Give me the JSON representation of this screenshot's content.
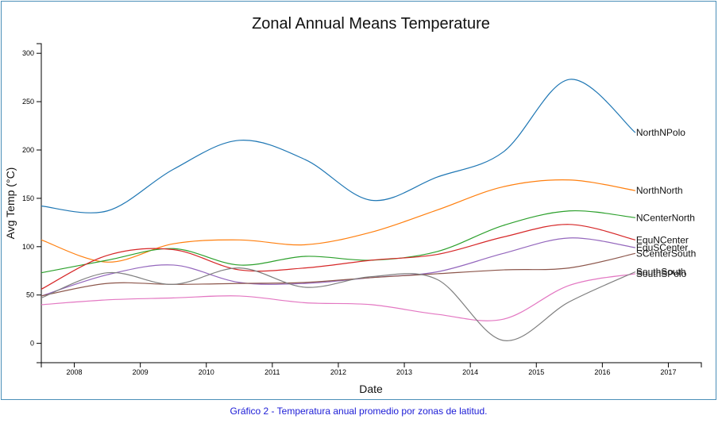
{
  "caption": "Gráfico 2 - Temperatura anual promedio por zonas de latitud.",
  "chart_data": {
    "type": "line",
    "title": "Zonal Annual Means Temperature",
    "xlabel": "Date",
    "ylabel": "Avg Temp (°C)",
    "xlim": [
      2007.5,
      2017.5
    ],
    "ylim": [
      -20,
      310
    ],
    "x_ticks": [
      2008,
      2009,
      2010,
      2011,
      2012,
      2013,
      2014,
      2015,
      2016,
      2017
    ],
    "y_ticks": [
      0,
      50,
      100,
      150,
      200,
      250,
      300
    ],
    "grid": false,
    "x": [
      2007.5,
      2008.5,
      2009.5,
      2010.5,
      2011.5,
      2012.5,
      2013.5,
      2014.5,
      2015.5,
      2016.5
    ],
    "series": [
      {
        "name": "NorthNPolo",
        "color": "#1f77b4",
        "values": [
          142,
          137,
          180,
          210,
          190,
          148,
          172,
          198,
          273,
          218
        ]
      },
      {
        "name": "NorthNorth",
        "color": "#ff7f0e",
        "values": [
          107,
          84,
          103,
          107,
          102,
          115,
          138,
          162,
          169,
          158
        ]
      },
      {
        "name": "NCenterNorth",
        "color": "#2ca02c",
        "values": [
          73,
          86,
          98,
          81,
          90,
          86,
          95,
          122,
          137,
          130
        ]
      },
      {
        "name": "EquNCenter",
        "color": "#d62728",
        "values": [
          56,
          91,
          97,
          76,
          78,
          86,
          92,
          110,
          123,
          107
        ]
      },
      {
        "name": "EquSCenter",
        "color": "#9467bd",
        "values": [
          49,
          71,
          81,
          63,
          62,
          68,
          74,
          93,
          109,
          99
        ]
      },
      {
        "name": "SCenterSouth",
        "color": "#8c564b",
        "values": [
          49,
          62,
          61,
          62,
          63,
          68,
          72,
          76,
          78,
          93
        ]
      },
      {
        "name": "SouthSPolo",
        "color": "#e377c2",
        "values": [
          40,
          45,
          47,
          49,
          42,
          40,
          30,
          25,
          60,
          72
        ]
      },
      {
        "name": "SouthSouth",
        "color": "#7f7f7f",
        "values": [
          47,
          73,
          61,
          78,
          58,
          69,
          66,
          3,
          43,
          74
        ]
      }
    ]
  }
}
